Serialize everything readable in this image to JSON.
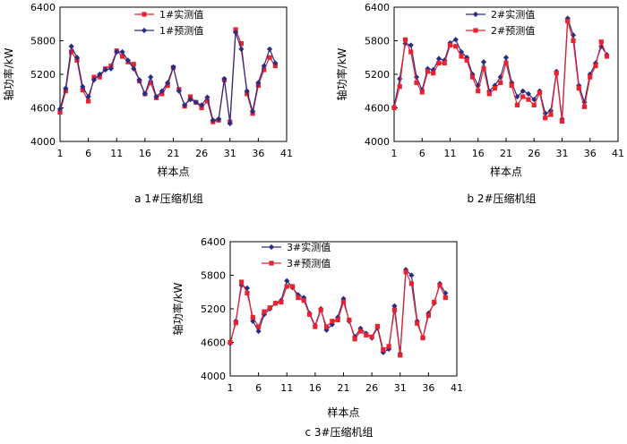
{
  "chart_data": [
    {
      "type": "line",
      "caption": "a  1#压缩机组",
      "xlabel": "样本点",
      "ylabel": "轴功率/kW",
      "xlim": [
        1,
        41
      ],
      "ylim": [
        4000,
        6400
      ],
      "xticks": [
        1,
        6,
        11,
        16,
        21,
        26,
        31,
        36,
        41
      ],
      "yticks": [
        4000,
        4600,
        5200,
        5800,
        6400
      ],
      "legend_position": "top-right",
      "series": [
        {
          "name": "1#实测值",
          "marker": "square",
          "color": "#e8232f",
          "values": [
            4520,
            4900,
            5600,
            5450,
            4920,
            4720,
            5150,
            5150,
            5300,
            5350,
            5620,
            5520,
            5420,
            5380,
            5080,
            4850,
            5050,
            4780,
            4850,
            5000,
            5320,
            4930,
            4630,
            4800,
            4700,
            4600,
            4720,
            4350,
            4380,
            5100,
            4350,
            6000,
            5750,
            4850,
            4500,
            5000,
            5280,
            5500,
            5350
          ]
        },
        {
          "name": "1#预测值",
          "marker": "diamond",
          "color": "#2a2d84",
          "values": [
            4580,
            4950,
            5700,
            5500,
            4980,
            4800,
            5100,
            5200,
            5280,
            5300,
            5600,
            5600,
            5450,
            5300,
            5100,
            4850,
            5150,
            4800,
            4900,
            5050,
            5330,
            4900,
            4650,
            4750,
            4700,
            4650,
            4790,
            4380,
            4400,
            5120,
            4320,
            5950,
            5650,
            4900,
            4540,
            5050,
            5350,
            5650,
            5400
          ]
        }
      ]
    },
    {
      "type": "line",
      "caption": "b  2#压缩机组",
      "xlabel": "样本点",
      "ylabel": "轴功率/kW",
      "xlim": [
        1,
        41
      ],
      "ylim": [
        4000,
        6400
      ],
      "xticks": [
        1,
        6,
        11,
        16,
        21,
        26,
        31,
        36,
        41
      ],
      "yticks": [
        4000,
        4600,
        5200,
        5800,
        6400
      ],
      "legend_position": "top-right",
      "series": [
        {
          "name": "2#实测值",
          "marker": "diamond",
          "color": "#2a2d84",
          "values": [
            4620,
            5120,
            5750,
            5720,
            5150,
            4920,
            5300,
            5280,
            5480,
            5450,
            5760,
            5820,
            5600,
            5500,
            5200,
            5000,
            5420,
            4900,
            5000,
            5150,
            5500,
            5050,
            4800,
            4900,
            4850,
            4750,
            4900,
            4500,
            4550,
            5250,
            4400,
            6200,
            5900,
            5000,
            4700,
            5200,
            5400,
            5700,
            5550
          ]
        },
        {
          "name": "2#预测值",
          "marker": "square",
          "color": "#e8232f",
          "values": [
            4600,
            4980,
            5820,
            5600,
            5050,
            4880,
            5250,
            5220,
            5400,
            5400,
            5720,
            5700,
            5520,
            5450,
            5150,
            4900,
            5300,
            4850,
            4950,
            5050,
            5400,
            5000,
            4650,
            4800,
            4750,
            4650,
            4870,
            4420,
            4480,
            5220,
            4360,
            6150,
            5800,
            4950,
            4620,
            5150,
            5350,
            5780,
            5520
          ]
        }
      ]
    },
    {
      "type": "line",
      "caption": "c  3#压缩机组",
      "xlabel": "样本点",
      "ylabel": "轴功率/kW",
      "xlim": [
        1,
        41
      ],
      "ylim": [
        4000,
        6400
      ],
      "xticks": [
        1,
        6,
        11,
        16,
        21,
        26,
        31,
        36,
        41
      ],
      "yticks": [
        4000,
        4600,
        5200,
        5800,
        6400
      ],
      "legend_position": "top-right",
      "series": [
        {
          "name": "3#实测值",
          "marker": "diamond",
          "color": "#2a2d84",
          "values": [
            4580,
            4980,
            5620,
            5570,
            4980,
            4800,
            5100,
            5200,
            5300,
            5350,
            5700,
            5580,
            5450,
            5400,
            5120,
            4900,
            5200,
            4820,
            4920,
            5050,
            5380,
            4980,
            4700,
            4850,
            4760,
            4680,
            4860,
            4420,
            4480,
            5250,
            4400,
            5900,
            5800,
            4980,
            4680,
            5120,
            5300,
            5650,
            5480
          ]
        },
        {
          "name": "3#预测值",
          "marker": "square",
          "color": "#e8232f",
          "values": [
            4600,
            4950,
            5680,
            5480,
            5050,
            4880,
            5150,
            5220,
            5300,
            5320,
            5600,
            5600,
            5400,
            5350,
            5100,
            4880,
            5180,
            4880,
            4980,
            5000,
            5320,
            5000,
            4660,
            4800,
            4730,
            4700,
            4890,
            4470,
            4530,
            5180,
            4370,
            5860,
            5650,
            4940,
            4680,
            5080,
            5320,
            5620,
            5400
          ]
        }
      ]
    }
  ]
}
